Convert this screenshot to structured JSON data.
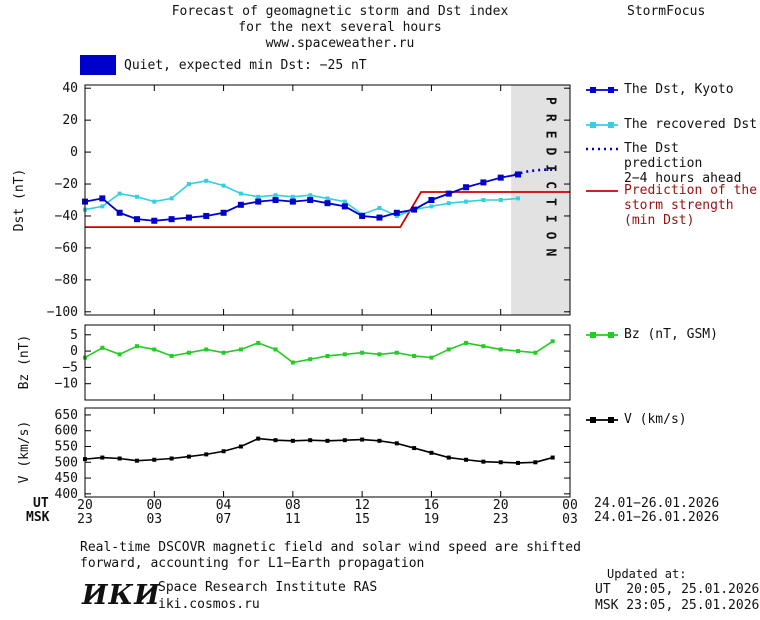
{
  "header": {
    "title_line1": "Forecast of geomagnetic storm and Dst index",
    "title_line2": "for the next several hours",
    "title_line3": "www.spaceweather.ru",
    "brand": "StormFocus"
  },
  "status": {
    "swatch_color": "#0000cc",
    "text": "Quiet, expected min Dst: −25 nT"
  },
  "legend": {
    "dst_kyoto": {
      "label": "The Dst, Kyoto",
      "color": "#0000cc",
      "markers": true,
      "dash": ""
    },
    "recovered": {
      "label": "The recovered Dst",
      "color": "#33cfe6",
      "markers": true,
      "dash": ""
    },
    "prediction": {
      "label": "The Dst prediction\n2−4 hours ahead",
      "color": "#0000cc",
      "markers": false,
      "dash": "2,4"
    },
    "storm": {
      "label": "Prediction of the\nstorm strength\n(min Dst)",
      "color": "#cc0000",
      "markers": false,
      "dash": "",
      "label_color": "#991111"
    },
    "bz": {
      "label": "Bz (nT, GSM)",
      "color": "#22cc22",
      "markers": true,
      "dash": ""
    },
    "v": {
      "label": "V (km/s)",
      "color": "#000000",
      "markers": true,
      "dash": ""
    }
  },
  "x_axis": {
    "tick_hours": [
      0,
      4,
      8,
      12,
      16,
      20,
      24,
      28
    ],
    "ut_label": "UT",
    "msk_label": "MSK",
    "ut_ticks": [
      "20",
      "00",
      "04",
      "08",
      "12",
      "16",
      "20",
      "00"
    ],
    "msk_ticks": [
      "23",
      "03",
      "07",
      "11",
      "15",
      "19",
      "23",
      "03"
    ],
    "ut_dates": "24.01−26.01.2026",
    "msk_dates": "24.01−26.01.2026"
  },
  "chart_data": [
    {
      "type": "line",
      "title": "Dst index forecast",
      "ylabel": "Dst (nT)",
      "ylim": [
        -102,
        42
      ],
      "yticks": [
        40,
        20,
        0,
        -20,
        -40,
        -60,
        -80,
        -100
      ],
      "xlim_hours": [
        0,
        28
      ],
      "grid": false,
      "prediction_band": {
        "x_start": 24.6,
        "x_end": 28,
        "fill": "#e2e2e2",
        "label": "PREDICTION",
        "label_color": "#bbbbbb"
      },
      "series": [
        {
          "name": "Prediction of the storm strength (min Dst)",
          "color": "#cc0000",
          "width": 1.8,
          "marker_size": 0,
          "dash": "",
          "x": [
            0,
            18.2,
            19.4,
            28
          ],
          "values": [
            -47,
            -47,
            -25,
            -25
          ]
        },
        {
          "name": "The recovered Dst",
          "color": "#33cfe6",
          "width": 1.6,
          "marker_size": 4,
          "dash": "",
          "x": [
            0,
            1,
            2,
            3,
            4,
            5,
            6,
            7,
            8,
            9,
            10,
            11,
            12,
            13,
            14,
            15,
            16,
            17,
            18,
            19,
            20,
            21,
            22,
            23,
            24,
            25
          ],
          "values": [
            -36,
            -34,
            -26,
            -28,
            -31,
            -29,
            -20,
            -18,
            -21,
            -26,
            -28,
            -27,
            -28,
            -27,
            -29,
            -31,
            -39,
            -35,
            -40,
            -36,
            -34,
            -32,
            -31,
            -30,
            -30,
            -29
          ]
        },
        {
          "name": "The Dst, Kyoto",
          "color": "#0000cc",
          "width": 1.8,
          "marker_size": 6,
          "dash": "",
          "x": [
            0,
            1,
            2,
            3,
            4,
            5,
            6,
            7,
            8,
            9,
            10,
            11,
            12,
            13,
            14,
            15,
            16,
            17,
            18,
            19,
            20,
            21,
            22,
            23,
            24,
            25
          ],
          "values": [
            -31,
            -29,
            -38,
            -42,
            -43,
            -42,
            -41,
            -40,
            -38,
            -33,
            -31,
            -30,
            -31,
            -30,
            -32,
            -34,
            -40,
            -41,
            -38,
            -36,
            -30,
            -26,
            -22,
            -19,
            -16,
            -14
          ]
        },
        {
          "name": "The Dst prediction 2−4 hours ahead",
          "color": "#0000cc",
          "width": 2.6,
          "marker_size": 0,
          "dash": "2,4",
          "x": [
            24.8,
            25.6,
            26.4,
            27.2
          ],
          "values": [
            -14,
            -12,
            -11,
            -11
          ]
        }
      ]
    },
    {
      "type": "line",
      "title": "Bz GSM",
      "ylabel": "Bz (nT)",
      "ylim": [
        -15,
        8
      ],
      "yticks": [
        5,
        0,
        -5,
        -10
      ],
      "xlim_hours": [
        0,
        28
      ],
      "grid": false,
      "series": [
        {
          "name": "Bz (nT, GSM)",
          "color": "#22cc22",
          "width": 1.6,
          "marker_size": 4,
          "dash": "",
          "x": [
            0,
            1,
            2,
            3,
            4,
            5,
            6,
            7,
            8,
            9,
            10,
            11,
            12,
            13,
            14,
            15,
            16,
            17,
            18,
            19,
            20,
            21,
            22,
            23,
            24,
            25,
            26,
            27
          ],
          "values": [
            -2,
            1,
            -1,
            1.5,
            0.5,
            -1.5,
            -0.5,
            0.5,
            -0.5,
            0.5,
            2.5,
            0.5,
            -3.5,
            -2.5,
            -1.5,
            -1,
            -0.5,
            -1,
            -0.5,
            -1.5,
            -2,
            0.5,
            2.5,
            1.5,
            0.5,
            0,
            -0.5,
            3
          ]
        }
      ]
    },
    {
      "type": "line",
      "title": "Solar wind speed",
      "ylabel": "V (km/s)",
      "ylim": [
        390,
        672
      ],
      "yticks": [
        650,
        600,
        550,
        500,
        450,
        400
      ],
      "xlim_hours": [
        0,
        28
      ],
      "grid": false,
      "series": [
        {
          "name": "V (km/s)",
          "color": "#000000",
          "width": 1.6,
          "marker_size": 4,
          "dash": "",
          "x": [
            0,
            1,
            2,
            3,
            4,
            5,
            6,
            7,
            8,
            9,
            10,
            11,
            12,
            13,
            14,
            15,
            16,
            17,
            18,
            19,
            20,
            21,
            22,
            23,
            24,
            25,
            26,
            27
          ],
          "values": [
            510,
            515,
            512,
            505,
            508,
            512,
            518,
            525,
            535,
            550,
            575,
            570,
            568,
            570,
            568,
            570,
            572,
            568,
            560,
            545,
            530,
            515,
            508,
            502,
            500,
            498,
            500,
            515
          ]
        }
      ]
    }
  ],
  "footer": {
    "note_line1": "Real-time DSCOVR magnetic field and solar wind speed are shifted",
    "note_line2": "forward, accounting for L1−Earth propagation",
    "updated_label": "Updated at:",
    "updated_ut": "UT  20:05, 25.01.2026",
    "updated_msk": "MSK 23:05, 25.01.2026",
    "logo": "ИКИ",
    "institute": "Space Research Institute RAS",
    "site": "iki.cosmos.ru"
  }
}
